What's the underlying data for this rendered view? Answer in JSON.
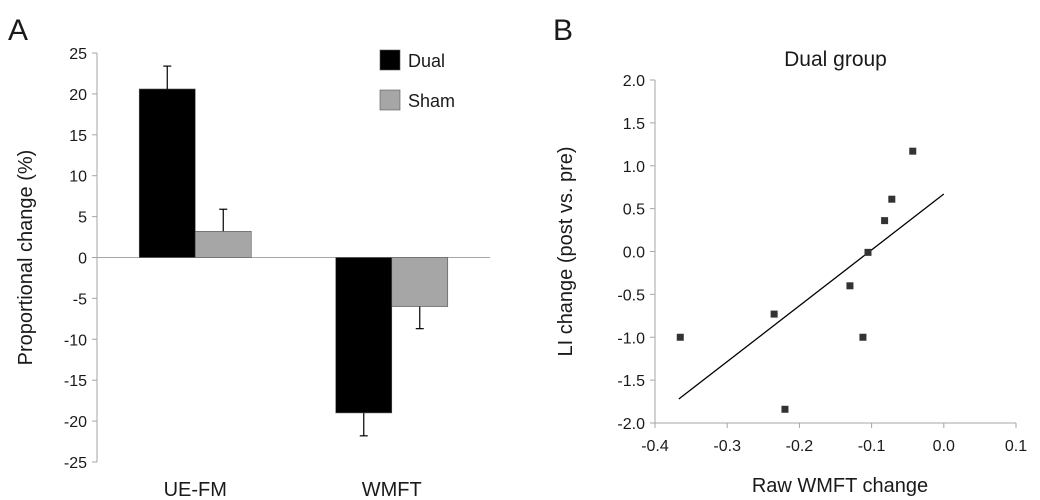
{
  "chart_data": [
    {
      "panel": "A",
      "type": "bar",
      "categories": [
        "UE-FM",
        "WMFT"
      ],
      "series": [
        {
          "name": "Dual",
          "color": "#000000",
          "values": [
            20.6,
            -19.0
          ],
          "errors": [
            2.8,
            2.8
          ]
        },
        {
          "name": "Sham",
          "color": "#a6a6a6",
          "values": [
            3.2,
            -6.0
          ],
          "errors": [
            2.7,
            2.7
          ]
        }
      ],
      "title": "",
      "xlabel": "",
      "ylabel": "Proportional change (%)",
      "ylim": [
        -25,
        25
      ],
      "yticks": [
        25,
        20,
        15,
        10,
        5,
        0,
        -5,
        -10,
        -15,
        -20,
        -25
      ],
      "legend_position": "top-right",
      "grid": false
    },
    {
      "panel": "B",
      "type": "scatter",
      "title": "Dual group",
      "xlabel": "Raw WMFT change",
      "ylabel": "LI change (post vs. pre)",
      "xlim": [
        -0.4,
        0.1
      ],
      "ylim": [
        -2.0,
        2.0
      ],
      "xticks": [
        "-0.4",
        "-0.3",
        "-0.2",
        "-0.1",
        "0.0",
        "0.1"
      ],
      "yticks": [
        "2.0",
        "1.5",
        "1.0",
        "0.5",
        "0.0",
        "-0.5",
        "-1.0",
        "-1.5",
        "-2.0"
      ],
      "points": [
        {
          "x": -0.365,
          "y": -1.0
        },
        {
          "x": -0.235,
          "y": -0.73
        },
        {
          "x": -0.22,
          "y": -1.84
        },
        {
          "x": -0.13,
          "y": -0.4
        },
        {
          "x": -0.112,
          "y": -1.0
        },
        {
          "x": -0.105,
          "y": -0.01
        },
        {
          "x": -0.082,
          "y": 0.36
        },
        {
          "x": -0.072,
          "y": 0.61
        },
        {
          "x": -0.043,
          "y": 1.17
        }
      ],
      "fit_line": {
        "x": [
          -0.367,
          0.0
        ],
        "y": [
          -1.72,
          0.67
        ]
      },
      "marker_color": "#333333",
      "grid": false
    }
  ]
}
